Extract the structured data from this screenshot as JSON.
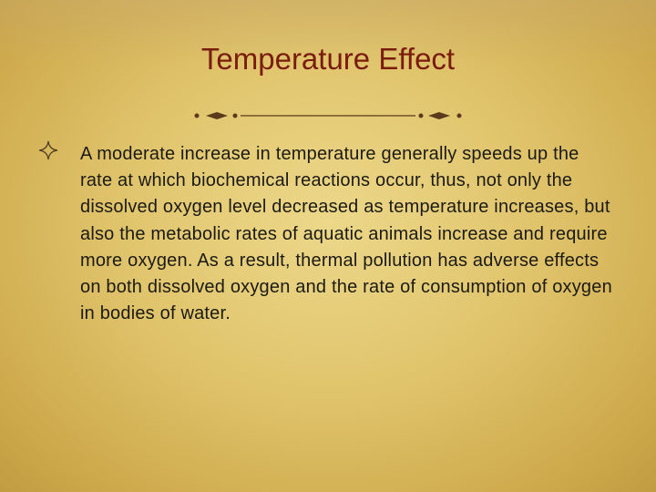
{
  "slide": {
    "title": "Temperature Effect",
    "bullets": [
      "A moderate increase in temperature generally speeds up the rate at which biochemical reactions occur, thus, not only the dissolved oxygen level decreased as temperature increases, but also the metabolic rates of aquatic animals increase and require more oxygen. As a result, thermal pollution has adverse effects on both dissolved oxygen and the rate of consumption of oxygen in bodies of water."
    ]
  }
}
